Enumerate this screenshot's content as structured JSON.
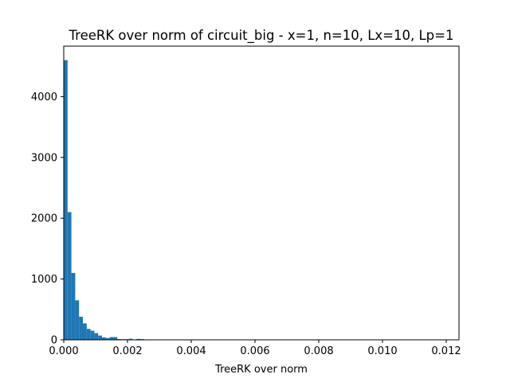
{
  "chart_data": {
    "type": "bar",
    "title": "TreeRK over norm of circuit_big - x=1, n=10, Lx=10, Lp=1",
    "xlabel": "TreeRK over norm",
    "ylabel": "",
    "xlim": [
      0,
      0.0124
    ],
    "ylim": [
      0,
      4830
    ],
    "grid": false,
    "bar_color": "#1f77b4",
    "bin_width": 0.00012,
    "xticks": [
      0,
      0.002,
      0.004,
      0.006,
      0.008,
      0.01,
      0.012
    ],
    "xtick_labels": [
      "0.000",
      "0.002",
      "0.004",
      "0.006",
      "0.008",
      "0.010",
      "0.012"
    ],
    "yticks": [
      0,
      1000,
      2000,
      3000,
      4000
    ],
    "ytick_labels": [
      "0",
      "1000",
      "2000",
      "3000",
      "4000"
    ],
    "bins": [
      {
        "x": 0.0,
        "count": 4600
      },
      {
        "x": 0.00012,
        "count": 2100
      },
      {
        "x": 0.00024,
        "count": 1100
      },
      {
        "x": 0.00036,
        "count": 650
      },
      {
        "x": 0.00048,
        "count": 380
      },
      {
        "x": 0.0006,
        "count": 270
      },
      {
        "x": 0.00072,
        "count": 180
      },
      {
        "x": 0.00084,
        "count": 150
      },
      {
        "x": 0.00096,
        "count": 110
      },
      {
        "x": 0.00108,
        "count": 70
      },
      {
        "x": 0.0012,
        "count": 40
      },
      {
        "x": 0.00132,
        "count": 30
      },
      {
        "x": 0.00144,
        "count": 45
      },
      {
        "x": 0.00156,
        "count": 45
      },
      {
        "x": 0.00168,
        "count": 12
      },
      {
        "x": 0.0018,
        "count": 10
      },
      {
        "x": 0.00192,
        "count": 10
      },
      {
        "x": 0.00204,
        "count": 18
      },
      {
        "x": 0.00216,
        "count": 5
      },
      {
        "x": 0.00228,
        "count": 15
      },
      {
        "x": 0.0024,
        "count": 12
      },
      {
        "x": 0.00252,
        "count": 3
      },
      {
        "x": 0.00264,
        "count": 3
      },
      {
        "x": 0.00276,
        "count": 2
      },
      {
        "x": 0.00288,
        "count": 2
      },
      {
        "x": 0.003,
        "count": 2
      },
      {
        "x": 0.00312,
        "count": 1
      },
      {
        "x": 0.00324,
        "count": 1
      },
      {
        "x": 0.00336,
        "count": 1
      }
    ]
  }
}
